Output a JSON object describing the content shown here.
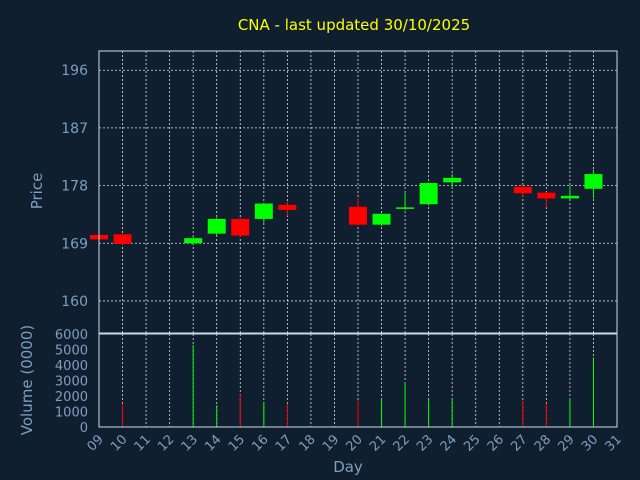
{
  "chart_data": {
    "type": "candlestick",
    "title": "CNA - last updated 30/10/2025",
    "price_panel": {
      "ylabel": "Price",
      "yticks": [
        160,
        169,
        178,
        187,
        196
      ],
      "ylim": [
        155,
        199
      ]
    },
    "volume_panel": {
      "ylabel": "Volume (0000)",
      "yticks": [
        0,
        1000,
        2000,
        3000,
        4000,
        5000,
        6000
      ],
      "ylim": [
        0,
        6000
      ]
    },
    "xlabel": "Day",
    "xlim": [
      9,
      31
    ],
    "xticks": [
      "09",
      "10",
      "11",
      "12",
      "13",
      "14",
      "15",
      "16",
      "17",
      "18",
      "19",
      "20",
      "21",
      "22",
      "23",
      "24",
      "25",
      "26",
      "27",
      "28",
      "29",
      "30",
      "31"
    ],
    "colors": {
      "up": "#00ff00",
      "down": "#ff0000"
    },
    "candles": [
      {
        "day": 9,
        "open": 170.3,
        "high": 170.9,
        "low": 169.6,
        "close": 169.6,
        "volume": 0
      },
      {
        "day": 10,
        "open": 170.4,
        "high": 170.5,
        "low": 168.8,
        "close": 168.9,
        "volume": 1500
      },
      {
        "day": 13,
        "open": 169.0,
        "high": 170.2,
        "low": 168.7,
        "close": 169.8,
        "volume": 5300
      },
      {
        "day": 14,
        "open": 170.5,
        "high": 173.0,
        "low": 170.3,
        "close": 172.8,
        "volume": 1400
      },
      {
        "day": 15,
        "open": 172.8,
        "high": 173.0,
        "low": 170.0,
        "close": 170.2,
        "volume": 2100
      },
      {
        "day": 16,
        "open": 172.8,
        "high": 175.3,
        "low": 172.2,
        "close": 175.2,
        "volume": 1600
      },
      {
        "day": 17,
        "open": 175.0,
        "high": 175.5,
        "low": 173.3,
        "close": 174.2,
        "volume": 1500
      },
      {
        "day": 20,
        "open": 174.7,
        "high": 176.0,
        "low": 171.8,
        "close": 171.9,
        "volume": 1700
      },
      {
        "day": 21,
        "open": 171.9,
        "high": 173.6,
        "low": 171.7,
        "close": 173.6,
        "volume": 1800
      },
      {
        "day": 22,
        "open": 174.5,
        "high": 176.9,
        "low": 174.2,
        "close": 174.6,
        "volume": 2900
      },
      {
        "day": 23,
        "open": 175.1,
        "high": 178.5,
        "low": 174.9,
        "close": 178.4,
        "volume": 1800
      },
      {
        "day": 24,
        "open": 178.5,
        "high": 179.8,
        "low": 177.5,
        "close": 179.2,
        "volume": 1800
      },
      {
        "day": 27,
        "open": 177.8,
        "high": 178.1,
        "low": 176.3,
        "close": 176.8,
        "volume": 1700
      },
      {
        "day": 28,
        "open": 176.9,
        "high": 177.0,
        "low": 174.6,
        "close": 176.0,
        "volume": 1500
      },
      {
        "day": 29,
        "open": 176.0,
        "high": 178.0,
        "low": 175.9,
        "close": 176.4,
        "volume": 1800
      },
      {
        "day": 30,
        "open": 177.5,
        "high": 180.5,
        "low": 176.0,
        "close": 179.8,
        "volume": 4500
      }
    ]
  }
}
